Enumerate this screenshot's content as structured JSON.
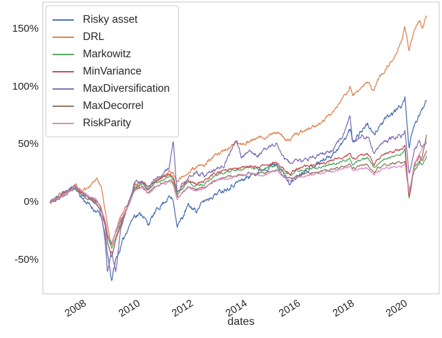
{
  "style": {
    "background": "#ffffff",
    "spine_color": "#cdced0",
    "text_color": "#262626",
    "legend_border_color": "#cccccc"
  },
  "chart_data": {
    "type": "line",
    "title": "",
    "xlabel": "dates",
    "ylabel": "",
    "grid": false,
    "legend_position": "upper-left",
    "xlim": [
      2006.58,
      2021.38
    ],
    "ylim": [
      -79,
      173
    ],
    "x_ticks": [
      {
        "value": 2008,
        "label": "2008"
      },
      {
        "value": 2010,
        "label": "2010"
      },
      {
        "value": 2012,
        "label": "2012"
      },
      {
        "value": 2014,
        "label": "2014"
      },
      {
        "value": 2016,
        "label": "2016"
      },
      {
        "value": 2018,
        "label": "2018"
      },
      {
        "value": 2020,
        "label": "2020"
      }
    ],
    "y_ticks": [
      {
        "value": 150,
        "label": "150%"
      },
      {
        "value": 100,
        "label": "100%"
      },
      {
        "value": 50,
        "label": "50%"
      },
      {
        "value": 0,
        "label": "0%"
      },
      {
        "value": -50,
        "label": "-50%"
      }
    ],
    "x_unit": "year",
    "y_unit": "percent_return",
    "x": [
      2006.85,
      2007.2,
      2007.5,
      2007.8,
      2008.0,
      2008.3,
      2008.6,
      2008.75,
      2008.9,
      2009.0,
      2009.15,
      2009.3,
      2009.5,
      2009.75,
      2010.0,
      2010.3,
      2010.5,
      2010.8,
      2011.0,
      2011.3,
      2011.45,
      2011.6,
      2011.8,
      2012.0,
      2012.3,
      2012.6,
      2013.0,
      2013.4,
      2013.8,
      2014.0,
      2014.3,
      2014.6,
      2015.0,
      2015.3,
      2015.6,
      2015.8,
      2016.0,
      2016.3,
      2016.6,
      2017.0,
      2017.4,
      2017.8,
      2018.05,
      2018.15,
      2018.4,
      2018.7,
      2018.95,
      2019.1,
      2019.4,
      2019.7,
      2020.0,
      2020.1,
      2020.25,
      2020.45,
      2020.65,
      2020.75,
      2020.9
    ],
    "series": [
      {
        "name": "Risky asset",
        "color": "#4C72B0",
        "noise": 3.0,
        "seed": 11,
        "values": [
          0,
          6,
          10,
          13,
          5,
          -2,
          -8,
          -12,
          -28,
          -45,
          -67,
          -50,
          -38,
          -22,
          -11,
          -10,
          -19,
          -8,
          -2,
          5,
          2,
          -20,
          -13,
          -3,
          -7,
          1,
          7,
          12,
          17,
          19,
          23,
          27,
          31,
          33,
          24,
          15,
          21,
          27,
          31,
          36,
          42,
          52,
          63,
          53,
          60,
          68,
          57,
          65,
          72,
          78,
          85,
          90,
          48,
          66,
          76,
          80,
          90
        ]
      },
      {
        "name": "DRL",
        "color": "#DD8452",
        "noise": 2.3,
        "seed": 22,
        "values": [
          0,
          7,
          12,
          16,
          10,
          14,
          20,
          15,
          -5,
          -22,
          -38,
          -25,
          -12,
          0,
          11,
          18,
          10,
          17,
          22,
          27,
          25,
          18,
          22,
          26,
          30,
          32,
          40,
          46,
          50,
          51,
          53,
          55,
          58,
          61,
          55,
          53,
          58,
          62,
          64,
          69,
          78,
          90,
          100,
          92,
          97,
          103,
          97,
          106,
          116,
          126,
          142,
          152,
          131,
          148,
          156,
          150,
          160
        ]
      },
      {
        "name": "Markowitz",
        "color": "#55A868",
        "noise": 1.5,
        "seed": 33,
        "values": [
          0,
          5,
          9,
          13,
          8,
          4,
          0,
          -5,
          -18,
          -30,
          -40,
          -30,
          -18,
          -2,
          13,
          16,
          11,
          17,
          19,
          22,
          20,
          6,
          12,
          17,
          14,
          16,
          23,
          26,
          27,
          28,
          30,
          28,
          30,
          32,
          26,
          23,
          26,
          28,
          29,
          31,
          33,
          36,
          38,
          33,
          36,
          38,
          30,
          34,
          38,
          40,
          42,
          45,
          2,
          30,
          35,
          32,
          40
        ]
      },
      {
        "name": "MinVariance",
        "color": "#C44E52",
        "noise": 1.6,
        "seed": 44,
        "values": [
          0,
          5,
          10,
          14,
          9,
          5,
          1,
          -4,
          -20,
          -35,
          -48,
          -32,
          -20,
          -3,
          15,
          18,
          13,
          19,
          21,
          24,
          22,
          8,
          14,
          19,
          16,
          18,
          25,
          28,
          29,
          30,
          32,
          30,
          33,
          35,
          28,
          25,
          28,
          31,
          32,
          34,
          36,
          40,
          43,
          37,
          40,
          42,
          33,
          38,
          42,
          44,
          47,
          50,
          5,
          33,
          40,
          36,
          45
        ]
      },
      {
        "name": "MaxDiversification",
        "color": "#8172B3",
        "noise": 2.6,
        "seed": 55,
        "values": [
          0,
          5,
          10,
          14,
          8,
          4,
          -2,
          -10,
          -30,
          -60,
          -42,
          -62,
          -20,
          -4,
          16,
          19,
          13,
          20,
          23,
          30,
          52,
          8,
          16,
          21,
          26,
          23,
          28,
          34,
          55,
          38,
          44,
          41,
          47,
          51,
          39,
          34,
          37,
          35,
          38,
          42,
          46,
          58,
          74,
          52,
          56,
          58,
          42,
          48,
          53,
          56,
          58,
          62,
          25,
          46,
          52,
          48,
          52
        ]
      },
      {
        "name": "MaxDecorrel",
        "color": "#937860",
        "noise": 1.4,
        "seed": 66,
        "values": [
          0,
          4,
          8,
          12,
          7,
          3,
          -1,
          -6,
          -16,
          -28,
          -36,
          -26,
          -16,
          -4,
          11,
          14,
          9,
          14,
          16,
          19,
          17,
          4,
          9,
          14,
          11,
          13,
          19,
          22,
          23,
          24,
          26,
          24,
          26,
          28,
          22,
          20,
          22,
          24,
          25,
          27,
          29,
          31,
          33,
          29,
          31,
          33,
          26,
          30,
          33,
          34,
          34,
          36,
          10,
          28,
          34,
          40,
          58
        ]
      },
      {
        "name": "RiskParity",
        "color": "#DA8BC3",
        "noise": 1.4,
        "seed": 77,
        "values": [
          0,
          5,
          9,
          14,
          10,
          6,
          2,
          -3,
          -15,
          -27,
          -35,
          -25,
          -14,
          -5,
          10,
          13,
          8,
          13,
          15,
          18,
          16,
          2,
          8,
          13,
          10,
          12,
          18,
          21,
          22,
          24,
          25,
          23,
          25,
          27,
          21,
          19,
          21,
          23,
          24,
          25,
          27,
          29,
          31,
          27,
          29,
          30,
          24,
          27,
          30,
          31,
          31,
          33,
          8,
          32,
          42,
          46,
          53
        ]
      }
    ]
  },
  "legend": {
    "items": [
      "Risky asset",
      "DRL",
      "Markowitz",
      "MinVariance",
      "MaxDiversification",
      "MaxDecorrel",
      "RiskParity"
    ]
  }
}
